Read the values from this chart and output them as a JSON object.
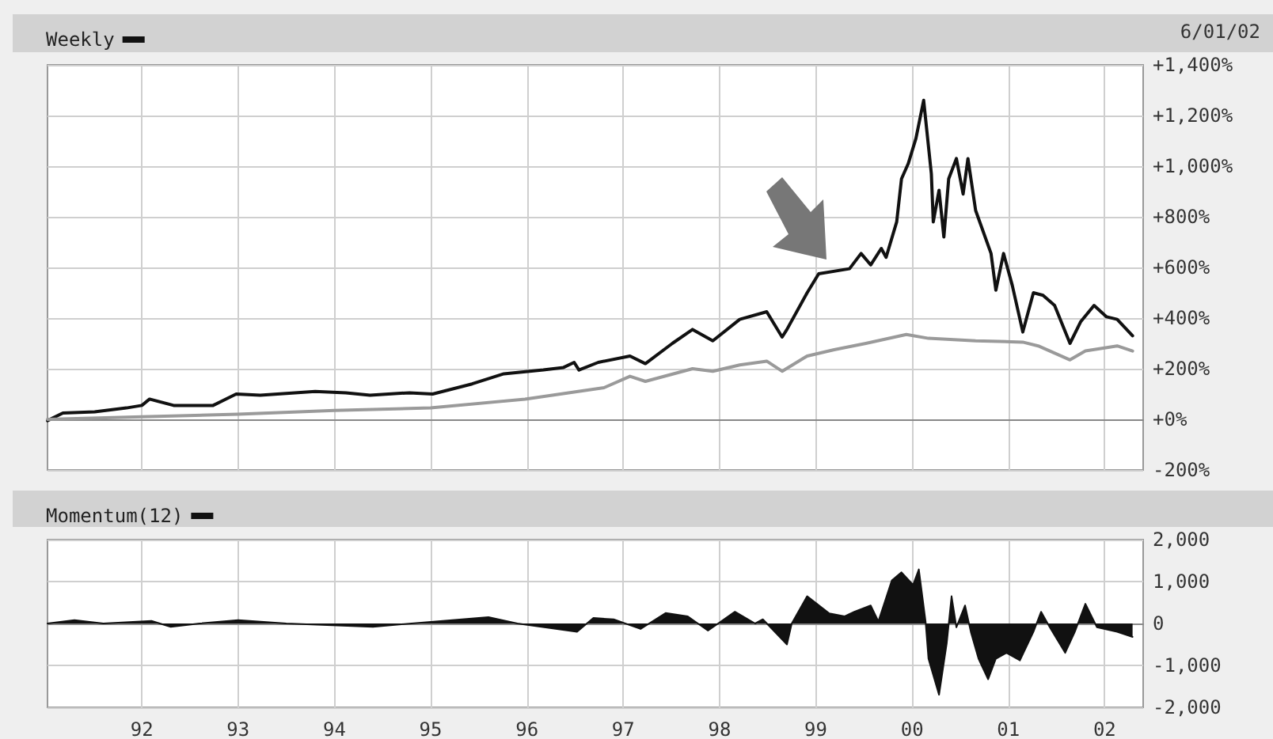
{
  "chart_data": [
    {
      "type": "line",
      "marker": "none",
      "line_style": "solid",
      "grid": true,
      "legend": "top left",
      "tick_labels": "y",
      "annotations": [
        "6/01/02"
      ],
      "xlim": [
        1991.02,
        2002.4
      ],
      "xticks": [
        {
          "value": 1992,
          "label": null
        },
        {
          "value": 1993,
          "label": null
        },
        {
          "value": 1994,
          "label": null
        },
        {
          "value": 1995,
          "label": null
        },
        {
          "value": 1996,
          "label": null
        },
        {
          "value": 1997,
          "label": null
        },
        {
          "value": 1998,
          "label": null
        },
        {
          "value": 1999,
          "label": null
        },
        {
          "value": 2000,
          "label": null
        },
        {
          "value": 2001,
          "label": null
        },
        {
          "value": 2002,
          "label": null
        }
      ],
      "ylim": [
        -200,
        1400
      ],
      "yticks": [
        {
          "value": -200,
          "label": "-200%"
        },
        {
          "value": 0,
          "label": "+0%"
        },
        {
          "value": 200,
          "label": "+200%"
        },
        {
          "value": 400,
          "label": "+400%"
        },
        {
          "value": 600,
          "label": "+600%"
        },
        {
          "value": 800,
          "label": "+800%"
        },
        {
          "value": 1000,
          "label": "+1,000%"
        },
        {
          "value": 1200,
          "label": "+1,200%"
        },
        {
          "value": 1400,
          "label": "+1,400%"
        }
      ],
      "series": [
        {
          "name": "Weekly",
          "color": "#111111",
          "x": [
            1991.02,
            1991.18,
            1991.51,
            1991.84,
            1992.0,
            1992.08,
            1992.33,
            1992.74,
            1992.98,
            1993.23,
            1993.8,
            1994.12,
            1994.37,
            1994.78,
            1995.02,
            1995.43,
            1995.76,
            1996.17,
            1996.38,
            1996.49,
            1996.54,
            1996.74,
            1997.07,
            1997.23,
            1997.51,
            1997.72,
            1997.93,
            1998.21,
            1998.49,
            1998.65,
            1998.7,
            1998.91,
            1999.03,
            1999.35,
            1999.47,
            1999.57,
            1999.68,
            1999.73,
            1999.84,
            1999.89,
            1999.96,
            2000.04,
            2000.12,
            2000.2,
            2000.22,
            2000.28,
            2000.33,
            2000.38,
            2000.46,
            2000.53,
            2000.58,
            2000.66,
            2000.82,
            2000.87,
            2000.95,
            2001.04,
            2001.15,
            2001.26,
            2001.36,
            2001.48,
            2001.64,
            2001.75,
            2001.89,
            2002.02,
            2002.13,
            2002.29
          ],
          "values": [
            -5,
            25,
            30,
            45,
            55,
            80,
            55,
            55,
            100,
            95,
            110,
            105,
            95,
            105,
            100,
            140,
            180,
            195,
            205,
            225,
            195,
            225,
            250,
            220,
            300,
            355,
            310,
            395,
            425,
            325,
            355,
            500,
            575,
            595,
            655,
            610,
            675,
            640,
            780,
            950,
            1010,
            1110,
            1260,
            970,
            780,
            905,
            720,
            950,
            1030,
            890,
            1030,
            825,
            655,
            510,
            655,
            530,
            345,
            500,
            490,
            450,
            300,
            385,
            450,
            405,
            395,
            330
          ]
        },
        {
          "color": "#9a9a9a",
          "x": [
            1991.02,
            1992.0,
            1993.0,
            1994.0,
            1995.0,
            1995.98,
            1996.8,
            1997.07,
            1997.23,
            1997.72,
            1997.93,
            1998.21,
            1998.49,
            1998.65,
            1998.91,
            1999.19,
            1999.52,
            1999.94,
            2000.17,
            2000.66,
            2001.15,
            2001.31,
            2001.64,
            2001.8,
            2002.13,
            2002.29
          ],
          "values": [
            0,
            10,
            20,
            35,
            45,
            80,
            125,
            170,
            150,
            200,
            190,
            215,
            230,
            190,
            250,
            275,
            300,
            335,
            320,
            310,
            305,
            290,
            235,
            270,
            290,
            270
          ]
        }
      ]
    },
    {
      "type": "area",
      "grid": true,
      "legend": "top left",
      "xlim": [
        1991.02,
        2002.4
      ],
      "xticks": [
        {
          "value": 1992,
          "label": "92"
        },
        {
          "value": 1993,
          "label": "93"
        },
        {
          "value": 1994,
          "label": "94"
        },
        {
          "value": 1995,
          "label": "95"
        },
        {
          "value": 1996,
          "label": "96"
        },
        {
          "value": 1997,
          "label": "97"
        },
        {
          "value": 1998,
          "label": "98"
        },
        {
          "value": 1999,
          "label": "99"
        },
        {
          "value": 2000,
          "label": "00"
        },
        {
          "value": 2001,
          "label": "01"
        },
        {
          "value": 2002,
          "label": "02"
        }
      ],
      "ylim": [
        -2000,
        2000
      ],
      "yticks": [
        {
          "value": -2000,
          "label": "-2,000"
        },
        {
          "value": -1000,
          "label": "-1,000"
        },
        0,
        {
          "value": 1000,
          "label": "1,000"
        },
        {
          "value": 2000,
          "label": "2,000"
        }
      ],
      "series": [
        {
          "name": "Momentum(12)",
          "color": "#111111",
          "x": [
            1991.02,
            1991.3,
            1991.6,
            1992.1,
            1992.3,
            1992.6,
            1993.0,
            1993.5,
            1994.4,
            1994.8,
            1995.6,
            1995.9,
            1996.52,
            1996.69,
            1996.9,
            1997.18,
            1997.44,
            1997.67,
            1997.88,
            1998.16,
            1998.37,
            1998.45,
            1998.7,
            1998.75,
            1998.91,
            1999.14,
            1999.3,
            1999.4,
            1999.57,
            1999.65,
            1999.79,
            1999.89,
            2000.01,
            2000.07,
            2000.14,
            2000.17,
            2000.28,
            2000.36,
            2000.41,
            2000.46,
            2000.55,
            2000.61,
            2000.69,
            2000.79,
            2000.87,
            2000.98,
            2001.12,
            2001.26,
            2001.34,
            2001.43,
            2001.59,
            2001.69,
            2001.8,
            2001.92,
            2002.13,
            2002.29
          ],
          "values": [
            0,
            80,
            0,
            60,
            -80,
            0,
            80,
            0,
            -80,
            0,
            150,
            0,
            -200,
            130,
            100,
            -130,
            250,
            170,
            -170,
            280,
            0,
            100,
            -500,
            0,
            650,
            240,
            170,
            280,
            430,
            50,
            1030,
            1220,
            920,
            1290,
            50,
            -840,
            -1700,
            -470,
            650,
            -90,
            430,
            -200,
            -840,
            -1330,
            -840,
            -700,
            -880,
            -200,
            280,
            -90,
            -700,
            -200,
            470,
            -90,
            -200,
            -320
          ]
        }
      ]
    }
  ]
}
